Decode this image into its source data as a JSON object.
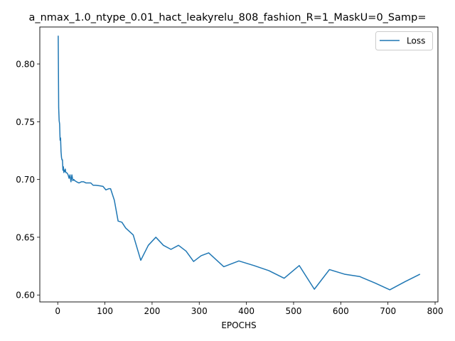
{
  "chart_data": {
    "type": "line",
    "title": "a_nmax_1.0_ntype_0.01_hact_leakyrelu_808_fashion_R=1_MaskU=0_Samp=",
    "xlabel": "EPOCHS",
    "ylabel": "",
    "xlim": [
      -38,
      806
    ],
    "ylim": [
      0.594,
      0.832
    ],
    "xticks": [
      0,
      100,
      200,
      300,
      400,
      500,
      600,
      700,
      800
    ],
    "yticks": [
      0.6,
      0.65,
      0.7,
      0.75,
      0.8
    ],
    "ytick_labels": [
      "0.60",
      "0.65",
      "0.70",
      "0.75",
      "0.80"
    ],
    "grid": false,
    "legend_position": "top-right",
    "series": [
      {
        "name": "Loss",
        "color": "#1f77b4",
        "x": [
          1,
          2,
          3,
          4,
          5,
          6,
          7,
          8,
          9,
          10,
          11,
          12,
          13,
          14,
          15,
          16,
          17,
          18,
          20,
          22,
          24,
          26,
          28,
          30,
          32,
          34,
          36,
          40,
          45,
          50,
          55,
          60,
          65,
          70,
          75,
          80,
          90,
          96,
          102,
          108,
          112,
          120,
          128,
          136,
          144,
          160,
          176,
          192,
          208,
          224,
          240,
          256,
          272,
          288,
          304,
          320,
          352,
          384,
          416,
          448,
          480,
          512,
          544,
          576,
          608,
          640,
          672,
          704,
          736,
          768
        ],
        "y": [
          0.8245,
          0.762,
          0.751,
          0.748,
          0.734,
          0.736,
          0.724,
          0.719,
          0.717,
          0.717,
          0.708,
          0.711,
          0.706,
          0.708,
          0.707,
          0.709,
          0.706,
          0.706,
          0.7055,
          0.704,
          0.701,
          0.704,
          0.698,
          0.704,
          0.699,
          0.7,
          0.699,
          0.698,
          0.697,
          0.698,
          0.698,
          0.697,
          0.697,
          0.697,
          0.695,
          0.695,
          0.6945,
          0.694,
          0.691,
          0.692,
          0.692,
          0.682,
          0.664,
          0.663,
          0.658,
          0.652,
          0.63,
          0.643,
          0.65,
          0.643,
          0.6395,
          0.643,
          0.638,
          0.629,
          0.634,
          0.6365,
          0.6245,
          0.6295,
          0.6255,
          0.621,
          0.6145,
          0.6255,
          0.605,
          0.622,
          0.618,
          0.616,
          0.6105,
          0.6045,
          0.6115,
          0.618
        ]
      }
    ]
  }
}
